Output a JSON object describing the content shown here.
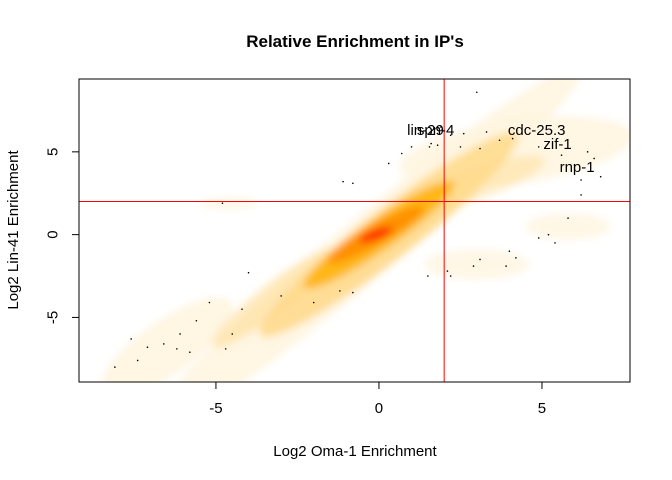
{
  "chart_data": {
    "type": "scatter",
    "title": "Relative Enrichment in IP's",
    "xlabel": "Log2 Oma-1 Enrichment",
    "ylabel": "Log2 Lin-41 Enrichment",
    "xlim": [
      -9.2,
      7.7
    ],
    "ylim": [
      -8.9,
      9.4
    ],
    "x_ticks": [
      -5,
      0,
      5
    ],
    "y_ticks": [
      -5,
      0,
      5
    ],
    "x_tick_labels": [
      "-5",
      "0",
      "5"
    ],
    "y_tick_labels": [
      "-5",
      "0",
      "5"
    ],
    "reference_lines": {
      "vline_x": 2,
      "hline_y": 2,
      "color": "#ff0000"
    },
    "density_colors": [
      "#fff5e0",
      "#ffd98a",
      "#ffb000",
      "#ff8c00",
      "#ff0000"
    ],
    "labeled_points": [
      {
        "label": "lin-29",
        "x": 1.55,
        "y": 5.3
      },
      {
        "label": "spn-4",
        "x": 1.8,
        "y": 5.4
      },
      {
        "label": "cdc-25.3",
        "x": 4.9,
        "y": 5.3
      },
      {
        "label": "zif-1",
        "x": 5.6,
        "y": 4.8
      },
      {
        "label": "rnp-1",
        "x": 6.2,
        "y": 3.3
      }
    ],
    "outlier_points": [
      {
        "x": 3.0,
        "y": 8.6
      },
      {
        "x": 1.9,
        "y": 6.5
      },
      {
        "x": 2.2,
        "y": 6.0
      },
      {
        "x": 2.6,
        "y": 6.1
      },
      {
        "x": 3.3,
        "y": 6.2
      },
      {
        "x": 3.7,
        "y": 5.7
      },
      {
        "x": 4.1,
        "y": 5.8
      },
      {
        "x": 3.1,
        "y": 5.2
      },
      {
        "x": 2.5,
        "y": 5.3
      },
      {
        "x": 1.6,
        "y": 5.5
      },
      {
        "x": 1.0,
        "y": 5.3
      },
      {
        "x": 0.7,
        "y": 4.9
      },
      {
        "x": 0.3,
        "y": 4.3
      },
      {
        "x": 6.4,
        "y": 5.0
      },
      {
        "x": 6.6,
        "y": 4.6
      },
      {
        "x": 6.0,
        "y": 4.2
      },
      {
        "x": 6.8,
        "y": 3.5
      },
      {
        "x": 6.2,
        "y": 2.4
      },
      {
        "x": 5.8,
        "y": 1.0
      },
      {
        "x": 5.2,
        "y": 0.0
      },
      {
        "x": 4.9,
        "y": -0.2
      },
      {
        "x": 5.4,
        "y": -0.5
      },
      {
        "x": 4.0,
        "y": -1.0
      },
      {
        "x": 4.2,
        "y": -1.4
      },
      {
        "x": 3.1,
        "y": -1.5
      },
      {
        "x": 2.9,
        "y": -1.9
      },
      {
        "x": 3.9,
        "y": -1.9
      },
      {
        "x": 2.1,
        "y": -2.2
      },
      {
        "x": 1.5,
        "y": -2.5
      },
      {
        "x": 2.2,
        "y": -2.5
      },
      {
        "x": -0.8,
        "y": 3.1
      },
      {
        "x": -1.1,
        "y": 3.2
      },
      {
        "x": -4.8,
        "y": 1.9
      },
      {
        "x": -1.2,
        "y": -3.4
      },
      {
        "x": -0.8,
        "y": -3.5
      },
      {
        "x": -2.0,
        "y": -4.1
      },
      {
        "x": -3.0,
        "y": -3.7
      },
      {
        "x": -4.0,
        "y": -2.3
      },
      {
        "x": -4.2,
        "y": -4.5
      },
      {
        "x": -5.2,
        "y": -4.1
      },
      {
        "x": -5.6,
        "y": -5.2
      },
      {
        "x": -4.5,
        "y": -6.0
      },
      {
        "x": -6.1,
        "y": -6.0
      },
      {
        "x": -5.8,
        "y": -7.1
      },
      {
        "x": -6.6,
        "y": -6.6
      },
      {
        "x": -7.1,
        "y": -6.8
      },
      {
        "x": -7.6,
        "y": -6.3
      },
      {
        "x": -7.4,
        "y": -7.6
      },
      {
        "x": -8.1,
        "y": -8.0
      },
      {
        "x": -6.2,
        "y": -6.9
      },
      {
        "x": -4.7,
        "y": -6.9
      }
    ]
  }
}
